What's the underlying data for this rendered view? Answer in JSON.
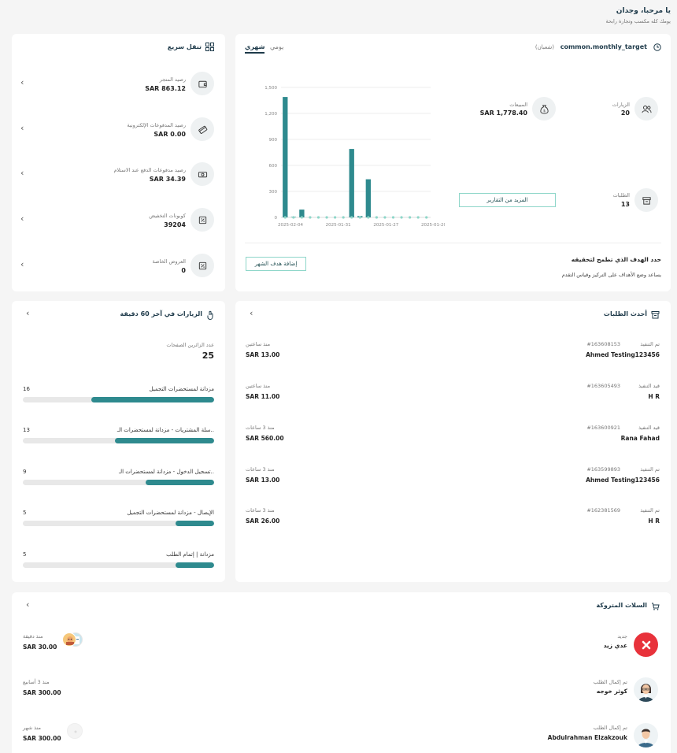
{
  "header": {
    "greeting": "يا مرحبا، وجدان",
    "subtitle": "يومك كله مكسب وتجارة رابحة"
  },
  "quick_nav": {
    "title": "تنقل سريع",
    "items": [
      {
        "label": "رصيد المتجر",
        "value": "SAR 863.12",
        "icon": "wallet-icon"
      },
      {
        "label": "رصيد المدفوعات الإلكترونية",
        "value": "SAR 0.00",
        "icon": "card-icon"
      },
      {
        "label": "رصيد مدفوعات الدفع عند الاستلام",
        "value": "SAR 34.39",
        "icon": "cash-icon"
      },
      {
        "label": "كوبونات التخفيض",
        "value": "39204",
        "icon": "coupon-icon"
      },
      {
        "label": "العروض الخاصة",
        "value": "0",
        "icon": "offer-icon"
      }
    ]
  },
  "target": {
    "title": "common.monthly_target",
    "month": "(شعبان)",
    "tabs": {
      "monthly": "شهري",
      "daily": "يومي"
    },
    "stats": {
      "visits_label": "الزيارات",
      "visits_value": "20",
      "sales_label": "المبيعات",
      "sales_value": "SAR 1,778.40",
      "orders_label": "الطلبات",
      "orders_value": "13"
    },
    "more_reports": "المزيد من التقارير",
    "goal_title": "حدد الهدف الذي تطمح لتحقيقه",
    "goal_desc": "يساعد وضع الأهداف على التركيز وقياس التقدم",
    "add_goal": "إضافة هدف الشهر"
  },
  "chart_data": {
    "type": "bar",
    "y_ticks": [
      "1,500",
      "1,200",
      "900",
      "600",
      "300",
      "0"
    ],
    "ylim": [
      0,
      1500
    ],
    "x_tick_labels": [
      "2025-02-04",
      "2025-01-31",
      "2025-01-27",
      "2025-01-20"
    ],
    "values": [
      1390,
      5,
      90,
      0,
      0,
      0,
      0,
      0,
      790,
      15,
      440,
      0,
      0,
      0,
      0,
      0,
      0,
      0
    ]
  },
  "visits": {
    "title": "الزيارات في آخر 60 دقيقة",
    "visitors_label": "عدد الزائرين الصفحات",
    "visitors_count": "25",
    "pages": [
      {
        "name": "مزدانة لمستحضرات التجميل",
        "count": "16",
        "fraction": 0.64
      },
      {
        "name": "سلة المشتريات - مزدانة لمستحضرات الـ..",
        "count": "13",
        "fraction": 0.52
      },
      {
        "name": "تسجيل الدخول - مزدانة لمستحضرات الـ..",
        "count": "9",
        "fraction": 0.36
      },
      {
        "name": "الإيصال - مزدانة لمستحضرات التجميل",
        "count": "5",
        "fraction": 0.2
      },
      {
        "name": "مزدانة | إتمام الطلب",
        "count": "5",
        "fraction": 0.2
      }
    ]
  },
  "orders": {
    "title": "أحدث الطلبات",
    "items": [
      {
        "status": "تم التنفيذ",
        "number": "#163608153",
        "customer": "Ahmed Testing123456",
        "time": "منذ ساعتين",
        "amount": "SAR 13.00"
      },
      {
        "status": "قيد التنفيذ",
        "number": "#163605493",
        "customer": "H R",
        "time": "منذ ساعتين",
        "amount": "SAR 11.00"
      },
      {
        "status": "قيد التنفيذ",
        "number": "#163600921",
        "customer": "Rana Fahad",
        "time": "منذ 3 ساعات",
        "amount": "SAR 560.00"
      },
      {
        "status": "تم التنفيذ",
        "number": "#163599893",
        "customer": "Ahmed Testing123456",
        "time": "منذ 3 ساعات",
        "amount": "SAR 13.00"
      },
      {
        "status": "تم التنفيذ",
        "number": "#162381569",
        "customer": "H R",
        "time": "منذ 3 ساعات",
        "amount": "SAR 26.00"
      }
    ]
  },
  "carts": {
    "title": "السلات المتروكة",
    "items": [
      {
        "status": "جديد",
        "name": "عدي زيد",
        "time": "منذ دقيقة",
        "amount": "SAR 30.00"
      },
      {
        "status": "تم إكمال الطلب",
        "name": "كوثر خوجه",
        "time": "منذ 3 أسابيع",
        "amount": "SAR 300.00"
      },
      {
        "status": "تم إكمال الطلب",
        "name": "Abdulrahman Elzakzouk",
        "time": "منذ شهر",
        "amount": "SAR 300.00"
      }
    ]
  },
  "colors": {
    "accent": "#2e8a8e",
    "accent_light": "#8ed6c9",
    "danger": "#e8323b"
  }
}
